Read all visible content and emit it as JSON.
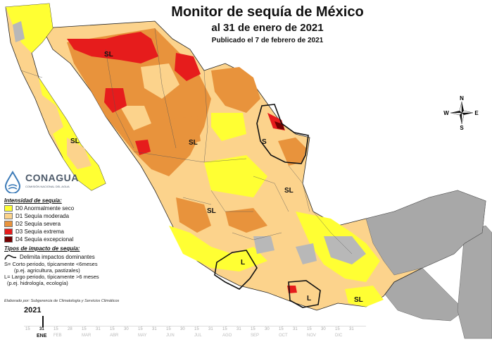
{
  "header": {
    "title": "Monitor de sequía de México",
    "subtitle": "al 31 de enero de 2021",
    "published": "Publicado el 7 de febrero de 2021"
  },
  "colors": {
    "D0": "#ffff33",
    "D1": "#fcd38c",
    "D2": "#e8933c",
    "D3": "#e61c1c",
    "D4": "#730000",
    "no_drought": "#ffffff",
    "neighbor": "#a8a8a8",
    "reservoir": "#b8b8b8",
    "border": "#222222"
  },
  "logo": {
    "name": "CONAGUA",
    "tagline": "COMISIÓN NACIONAL DEL AGUA"
  },
  "legend": {
    "intensity_title": "Intensidad de sequía:",
    "levels": [
      {
        "code": "D0",
        "label": "D0 Anormalmente seco"
      },
      {
        "code": "D1",
        "label": "D1 Sequía moderada"
      },
      {
        "code": "D2",
        "label": "D2 Sequía severa"
      },
      {
        "code": "D3",
        "label": "D3 Sequía extrema"
      },
      {
        "code": "D4",
        "label": "D4 Sequía excepcional"
      }
    ],
    "impact_title": "Tipos de impacto de sequía:",
    "impact_line": "Delimita impactos dominantes",
    "short_1": "S= Corto periodo, típicamente <6meses",
    "short_2": "(p.ej. agricultura, pastizales)",
    "long_1": "L= Largo periodo, típicamente >6 meses",
    "long_2": "(p.ej. hidrología, ecología)"
  },
  "credit": "Elaborado por: Subgerencia de Climatología y Servicios Climáticos",
  "compass": {
    "n": "N",
    "s": "S",
    "e": "E",
    "w": "W"
  },
  "map_labels": {
    "sl_sonora": "SL",
    "sl_baja": "SL",
    "sl_durango": "SL",
    "s_tamaulipas": "S",
    "sl_huasteca": "SL",
    "sl_bajio": "SL",
    "l_guerrero": "L",
    "l_oaxaca": "L",
    "sl_chiapas": "SL"
  },
  "timeline": {
    "year": "2021",
    "months": [
      "ENE",
      "FEB",
      "MAR",
      "ABR",
      "MAY",
      "JUN",
      "JUL",
      "AGO",
      "SEP",
      "OCT",
      "NOV",
      "DIC"
    ],
    "selected_month": "ENE",
    "selected_day": "31",
    "tick_days": [
      "15",
      "31",
      "15",
      "28",
      "15",
      "31",
      "15",
      "30",
      "15",
      "31",
      "15",
      "30",
      "15",
      "31",
      "15",
      "31",
      "15",
      "30",
      "15",
      "31",
      "15",
      "30",
      "15",
      "31"
    ]
  }
}
